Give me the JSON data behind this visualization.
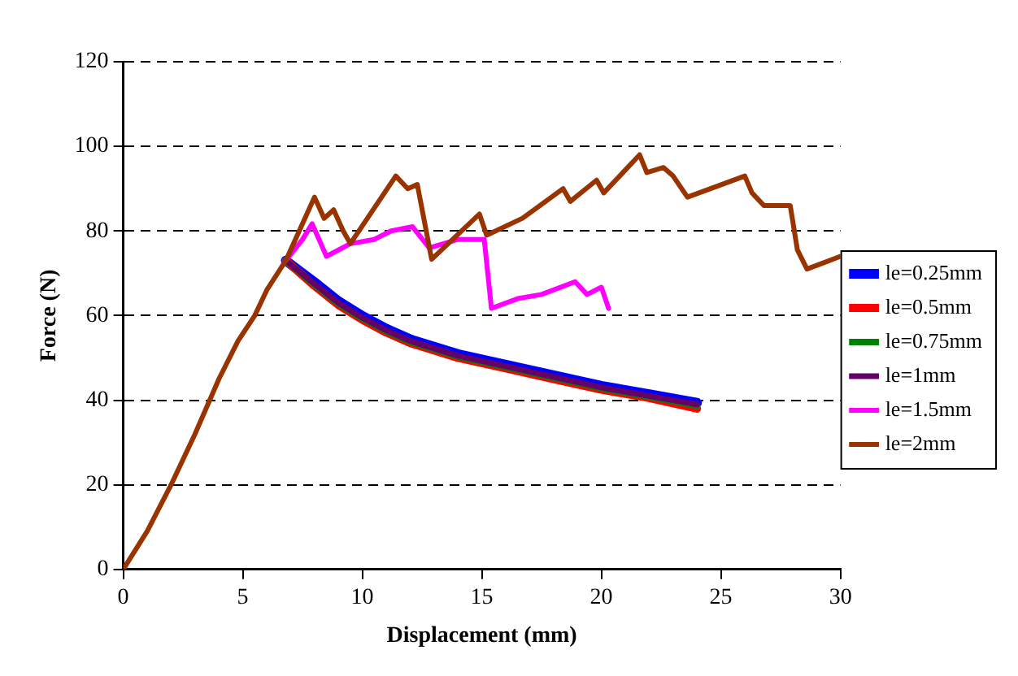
{
  "chart_data": {
    "type": "line",
    "xlabel": "Displacement (mm)",
    "ylabel": "Force (N)",
    "xlim": [
      0,
      30
    ],
    "xticks": [
      0,
      5,
      10,
      15,
      20,
      25,
      30
    ],
    "ylim": [
      0,
      120
    ],
    "yticks": [
      0,
      20,
      40,
      60,
      80,
      100,
      120
    ],
    "grid": "y",
    "legend": "right",
    "marker": "none",
    "line_style": "solid",
    "series": [
      {
        "name": "le=0.25mm",
        "color": "#0000ff",
        "x": [
          6.8,
          8,
          9,
          10,
          11,
          12,
          14,
          16,
          18,
          20,
          22,
          24
        ],
        "values": [
          73,
          67.9,
          63.4,
          59.9,
          56.9,
          54.4,
          50.9,
          48.4,
          45.9,
          43.4,
          41.4,
          39.4
        ]
      },
      {
        "name": "le=0.5mm",
        "color": "#ff0000",
        "x": [
          6.8,
          8,
          9,
          10,
          11,
          12,
          14,
          16,
          18,
          20,
          22,
          24
        ],
        "values": [
          73,
          67,
          62.5,
          59,
          56,
          53.5,
          50,
          47.5,
          45,
          42.5,
          40.5,
          38
        ]
      },
      {
        "name": "le=0.75mm",
        "color": "#008000",
        "x": [
          6.8,
          8,
          9,
          10,
          11,
          12,
          14,
          16,
          18,
          20,
          22,
          24
        ],
        "values": [
          73,
          67.3,
          62.8,
          59.3,
          56.3,
          53.8,
          50.3,
          47.8,
          45.3,
          42.8,
          40.8,
          38.7
        ]
      },
      {
        "name": "le=1mm",
        "color": "#660066",
        "x": [
          6.8,
          8,
          9,
          10,
          11,
          12,
          14,
          16,
          18,
          20,
          22,
          24
        ],
        "values": [
          73,
          67.5,
          63,
          59.5,
          56.5,
          54,
          50.5,
          48,
          45.5,
          43,
          41,
          39
        ]
      },
      {
        "name": "le=1.5mm",
        "color": "#ff00ff",
        "x": [
          6.8,
          7.5,
          7.9,
          8.5,
          9.5,
          10.5,
          11.2,
          12.1,
          12.8,
          14,
          15.1,
          15.4,
          16.5,
          17.5,
          18.9,
          19.4,
          20,
          20.3
        ],
        "values": [
          73,
          78,
          81.7,
          74,
          77,
          78,
          80,
          81,
          76,
          78,
          78,
          61.7,
          64,
          65,
          68,
          65,
          66.7,
          61.7
        ]
      },
      {
        "name": "le=2mm",
        "color": "#993300",
        "x": [
          0,
          1,
          2,
          3,
          4,
          4.8,
          5.5,
          6,
          6.8,
          8,
          8.4,
          8.8,
          9.2,
          9.5,
          11.4,
          11.9,
          12.3,
          12.9,
          14.9,
          15.2,
          16.7,
          18.4,
          18.7,
          19.8,
          20.1,
          21.6,
          21.9,
          22.6,
          23,
          23.6,
          26,
          26.3,
          26.8,
          27.9,
          28.2,
          28.6,
          30
        ],
        "values": [
          0,
          9,
          20,
          32,
          45,
          54,
          60,
          66,
          73,
          88,
          83,
          85,
          80,
          77,
          93,
          90,
          91,
          73.3,
          84,
          79,
          83,
          90,
          87,
          92,
          89,
          98,
          93.8,
          95,
          93,
          88,
          93,
          89,
          86,
          86,
          75.5,
          71,
          74
        ]
      }
    ]
  }
}
